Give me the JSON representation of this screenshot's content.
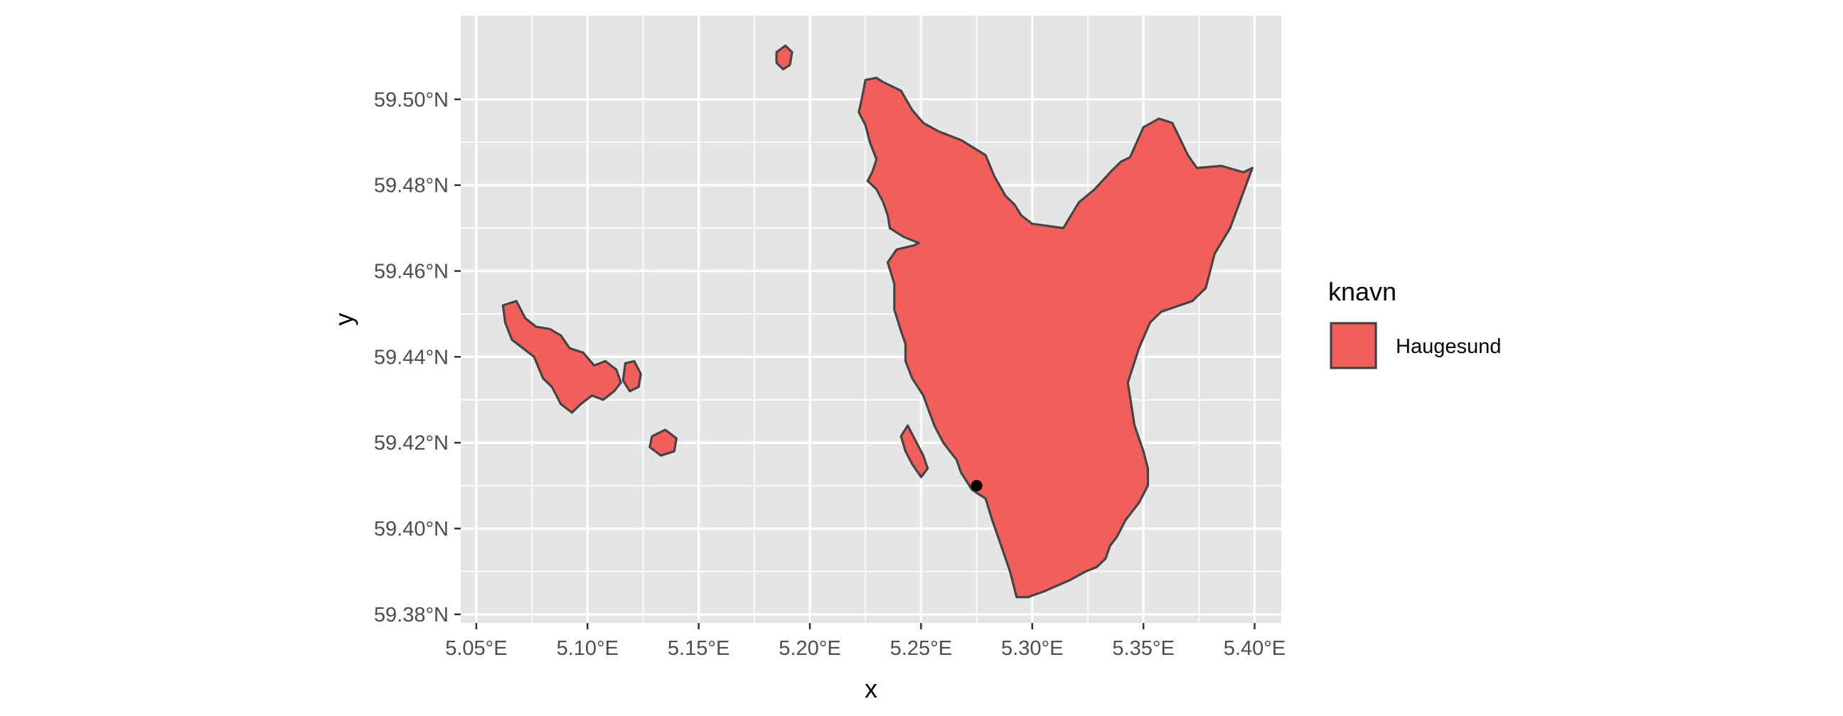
{
  "chart_data": {
    "type": "map",
    "xlabel": "x",
    "ylabel": "y",
    "xlim": [
      5.043,
      5.412
    ],
    "ylim": [
      59.378,
      59.5195
    ],
    "x_ticks": [
      {
        "value": 5.05,
        "label": "5.05°E"
      },
      {
        "value": 5.1,
        "label": "5.10°E"
      },
      {
        "value": 5.15,
        "label": "5.15°E"
      },
      {
        "value": 5.2,
        "label": "5.20°E"
      },
      {
        "value": 5.25,
        "label": "5.25°E"
      },
      {
        "value": 5.3,
        "label": "5.30°E"
      },
      {
        "value": 5.35,
        "label": "5.35°E"
      },
      {
        "value": 5.4,
        "label": "5.40°E"
      }
    ],
    "y_ticks": [
      {
        "value": 59.38,
        "label": "59.38°N"
      },
      {
        "value": 59.4,
        "label": "59.40°N"
      },
      {
        "value": 59.42,
        "label": "59.42°N"
      },
      {
        "value": 59.44,
        "label": "59.44°N"
      },
      {
        "value": 59.46,
        "label": "59.46°N"
      },
      {
        "value": 59.48,
        "label": "59.48°N"
      },
      {
        "value": 59.5,
        "label": "59.50°N"
      }
    ],
    "grid": true,
    "legend": {
      "title": "knavn",
      "position": "right",
      "entries": [
        {
          "label": "Haugesund",
          "color": "#f25e5a"
        }
      ]
    },
    "colors": {
      "fill": "#f25e5a",
      "border": "#444444",
      "panel": "#e5e5e5",
      "grid": "#ffffff",
      "point": "#000000"
    },
    "points": [
      {
        "lon": 5.275,
        "lat": 59.41
      }
    ],
    "regions": [
      {
        "name": "Haugesund",
        "polygons": [
          [
            [
              5.2235,
              59.5005
            ],
            [
              5.225,
              59.5045
            ],
            [
              5.23,
              59.505
            ],
            [
              5.233,
              59.504
            ],
            [
              5.235,
              59.5035
            ],
            [
              5.241,
              59.502
            ],
            [
              5.246,
              59.4975
            ],
            [
              5.251,
              59.4945
            ],
            [
              5.258,
              59.4925
            ],
            [
              5.268,
              59.4905
            ],
            [
              5.279,
              59.487
            ],
            [
              5.283,
              59.482
            ],
            [
              5.288,
              59.4775
            ],
            [
              5.292,
              59.4755
            ],
            [
              5.295,
              59.473
            ],
            [
              5.3,
              59.471
            ],
            [
              5.314,
              59.47
            ],
            [
              5.321,
              59.476
            ],
            [
              5.328,
              59.479
            ],
            [
              5.336,
              59.4835
            ],
            [
              5.34,
              59.4855
            ],
            [
              5.344,
              59.4865
            ],
            [
              5.35,
              59.4935
            ],
            [
              5.357,
              59.4955
            ],
            [
              5.363,
              59.4945
            ],
            [
              5.37,
              59.487
            ],
            [
              5.374,
              59.484
            ],
            [
              5.385,
              59.4845
            ],
            [
              5.395,
              59.483
            ],
            [
              5.399,
              59.484
            ],
            [
              5.394,
              59.477
            ],
            [
              5.389,
              59.47
            ],
            [
              5.382,
              59.464
            ],
            [
              5.378,
              59.456
            ],
            [
              5.372,
              59.453
            ],
            [
              5.358,
              59.4505
            ],
            [
              5.353,
              59.448
            ],
            [
              5.348,
              59.442
            ],
            [
              5.343,
              59.434
            ],
            [
              5.346,
              59.424
            ],
            [
              5.35,
              59.418
            ],
            [
              5.352,
              59.414
            ],
            [
              5.352,
              59.41
            ],
            [
              5.348,
              59.406
            ],
            [
              5.342,
              59.402
            ],
            [
              5.338,
              59.398
            ],
            [
              5.335,
              59.396
            ],
            [
              5.333,
              59.393
            ],
            [
              5.329,
              59.391
            ],
            [
              5.324,
              59.39
            ],
            [
              5.317,
              59.388
            ],
            [
              5.306,
              59.3855
            ],
            [
              5.298,
              59.384
            ],
            [
              5.293,
              59.384
            ],
            [
              5.29,
              59.39
            ],
            [
              5.286,
              59.396
            ],
            [
              5.282,
              59.402
            ],
            [
              5.279,
              59.407
            ],
            [
              5.273,
              59.409
            ],
            [
              5.268,
              59.413
            ],
            [
              5.266,
              59.416
            ],
            [
              5.26,
              59.42
            ],
            [
              5.256,
              59.424
            ],
            [
              5.251,
              59.431
            ],
            [
              5.246,
              59.435
            ],
            [
              5.243,
              59.439
            ],
            [
              5.243,
              59.443
            ],
            [
              5.241,
              59.446
            ],
            [
              5.238,
              59.451
            ],
            [
              5.238,
              59.457
            ],
            [
              5.235,
              59.462
            ],
            [
              5.239,
              59.465
            ],
            [
              5.247,
              59.466
            ],
            [
              5.249,
              59.4665
            ],
            [
              5.242,
              59.468
            ],
            [
              5.236,
              59.47
            ],
            [
              5.235,
              59.473
            ],
            [
              5.233,
              59.476
            ],
            [
              5.23,
              59.479
            ],
            [
              5.226,
              59.481
            ],
            [
              5.228,
              59.483
            ],
            [
              5.23,
              59.486
            ],
            [
              5.227,
              59.49
            ],
            [
              5.225,
              59.494
            ],
            [
              5.222,
              59.497
            ],
            [
              5.2235,
              59.5005
            ]
          ],
          [
            [
              5.062,
              59.452
            ],
            [
              5.068,
              59.453
            ],
            [
              5.072,
              59.449
            ],
            [
              5.077,
              59.447
            ],
            [
              5.083,
              59.4465
            ],
            [
              5.088,
              59.445
            ],
            [
              5.092,
              59.442
            ],
            [
              5.098,
              59.441
            ],
            [
              5.103,
              59.438
            ],
            [
              5.108,
              59.439
            ],
            [
              5.113,
              59.437
            ],
            [
              5.115,
              59.434
            ],
            [
              5.112,
              59.432
            ],
            [
              5.107,
              59.43
            ],
            [
              5.102,
              59.431
            ],
            [
              5.097,
              59.429
            ],
            [
              5.093,
              59.427
            ],
            [
              5.088,
              59.429
            ],
            [
              5.084,
              59.433
            ],
            [
              5.08,
              59.435
            ],
            [
              5.076,
              59.44
            ],
            [
              5.071,
              59.442
            ],
            [
              5.066,
              59.444
            ],
            [
              5.063,
              59.448
            ],
            [
              5.062,
              59.452
            ]
          ],
          [
            [
              5.117,
              59.4385
            ],
            [
              5.121,
              59.439
            ],
            [
              5.124,
              59.436
            ],
            [
              5.123,
              59.433
            ],
            [
              5.119,
              59.432
            ],
            [
              5.116,
              59.4345
            ],
            [
              5.117,
              59.4385
            ]
          ],
          [
            [
              5.129,
              59.4215
            ],
            [
              5.135,
              59.423
            ],
            [
              5.14,
              59.421
            ],
            [
              5.139,
              59.418
            ],
            [
              5.133,
              59.417
            ],
            [
              5.128,
              59.419
            ],
            [
              5.129,
              59.4215
            ]
          ],
          [
            [
              5.185,
              59.511
            ],
            [
              5.189,
              59.5125
            ],
            [
              5.192,
              59.511
            ],
            [
              5.191,
              59.508
            ],
            [
              5.188,
              59.507
            ],
            [
              5.185,
              59.5085
            ],
            [
              5.185,
              59.511
            ]
          ],
          [
            [
              5.244,
              59.424
            ],
            [
              5.248,
              59.42
            ],
            [
              5.251,
              59.417
            ],
            [
              5.253,
              59.414
            ],
            [
              5.25,
              59.412
            ],
            [
              5.246,
              59.415
            ],
            [
              5.243,
              59.418
            ],
            [
              5.241,
              59.4215
            ],
            [
              5.244,
              59.424
            ]
          ]
        ]
      }
    ]
  }
}
